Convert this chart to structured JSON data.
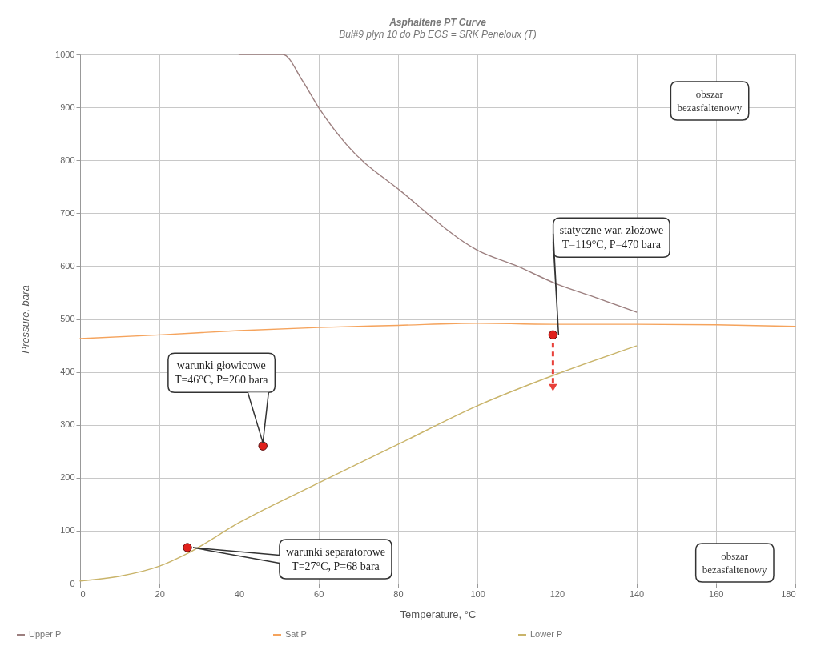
{
  "chart_data": {
    "type": "line",
    "title": "Asphaltene PT Curve",
    "subtitle": "Bul#9 płyn 10 do Pb EOS = SRK Peneloux (T)",
    "xlabel": "Temperature, °C",
    "ylabel": "Pressure, bara",
    "xlim": [
      0,
      180
    ],
    "xticks": [
      0,
      20,
      40,
      60,
      80,
      100,
      120,
      140,
      160,
      180
    ],
    "ylim": [
      0,
      1000
    ],
    "yticks": [
      0,
      100,
      200,
      300,
      400,
      500,
      600,
      700,
      800,
      900,
      1000
    ],
    "grid": true,
    "legend": "bottom",
    "series": [
      {
        "name": "Upper P",
        "color": "#9c7f7f",
        "x": [
          40,
          51,
          56,
          60,
          67,
          81,
          100,
          110,
          120,
          130,
          140
        ],
        "values": [
          1000,
          1000,
          950,
          900,
          830,
          740,
          630,
          600,
          566,
          540,
          513
        ]
      },
      {
        "name": "Sat P",
        "color": "#f5a35c",
        "x": [
          0,
          20,
          40,
          60,
          80,
          100,
          120,
          140,
          160,
          180
        ],
        "values": [
          463,
          470,
          478,
          484,
          488,
          492,
          490,
          490,
          489,
          486
        ]
      },
      {
        "name": "Lower P",
        "color": "#c9b46a",
        "x": [
          0,
          10,
          20,
          27,
          40,
          60,
          80,
          100,
          120,
          140
        ],
        "values": [
          5,
          14,
          33,
          57,
          115,
          190,
          263,
          336,
          396,
          449
        ]
      },
      {
        "type": "scatter",
        "color": "#e0201c",
        "marker": "circle",
        "x": [
          27,
          46,
          119
        ],
        "values": [
          68,
          260,
          470
        ]
      }
    ],
    "annotations": [
      {
        "text": "warunki separatorowe\nT=27°C, P=68 bara",
        "x": 27,
        "y": 68
      },
      {
        "text": "warunki głowicowe\nT=46°C, P=260 bara",
        "x": 46,
        "y": 260
      },
      {
        "text": "statyczne war. złożowe\nT=119°C, P=470 bara",
        "x": 119,
        "y": 470
      },
      "obszar\nbezasfaltenowy",
      "obszar\nbezasfaltenowy"
    ]
  }
}
